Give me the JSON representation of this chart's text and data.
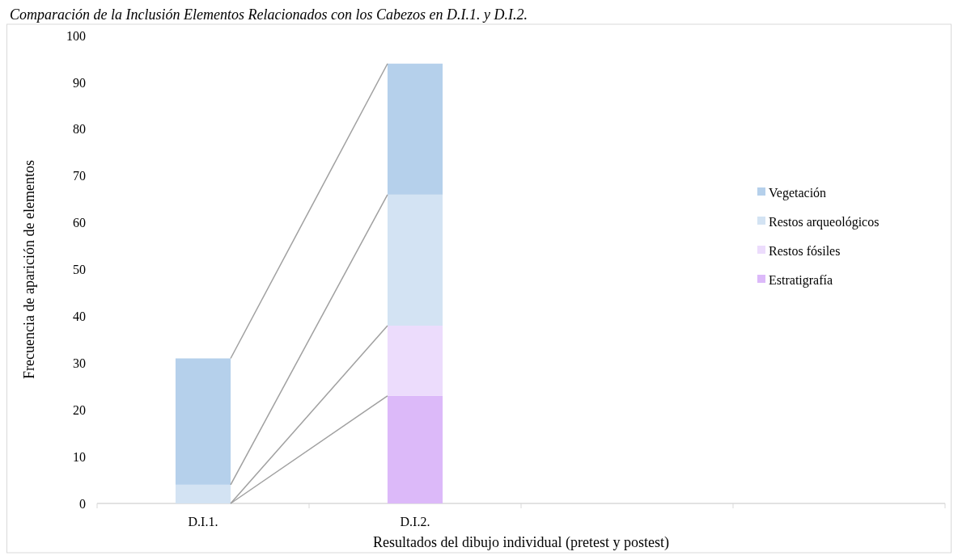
{
  "chart_data": {
    "type": "bar",
    "title": "Comparación de la Inclusión Elementos Relacionados con los Cabezos en D.I.1. y D.I.2.",
    "xlabel": "Resultados del dibujo individual (pretest y postest)",
    "ylabel": "Frecuencia de aparición de elementos",
    "categories": [
      "D.I.1.",
      "D.I.2.",
      null,
      null
    ],
    "stacked": true,
    "ylim": [
      0,
      100
    ],
    "yticks": [
      0,
      10,
      20,
      30,
      40,
      50,
      60,
      70,
      80,
      90,
      100
    ],
    "grid": false,
    "legend": "right",
    "series": [
      {
        "name": "Estratigrafía",
        "color": "#dcb9f9",
        "values": [
          0,
          23,
          null,
          null
        ]
      },
      {
        "name": "Restos fósiles",
        "color": "#ecdcfc",
        "values": [
          0,
          15,
          null,
          null
        ]
      },
      {
        "name": "Restos arqueológicos",
        "color": "#d3e3f3",
        "values": [
          4,
          28,
          null,
          null
        ]
      },
      {
        "name": "Vegetación",
        "color": "#b5d0eb",
        "values": [
          27,
          28,
          null,
          null
        ]
      }
    ]
  }
}
